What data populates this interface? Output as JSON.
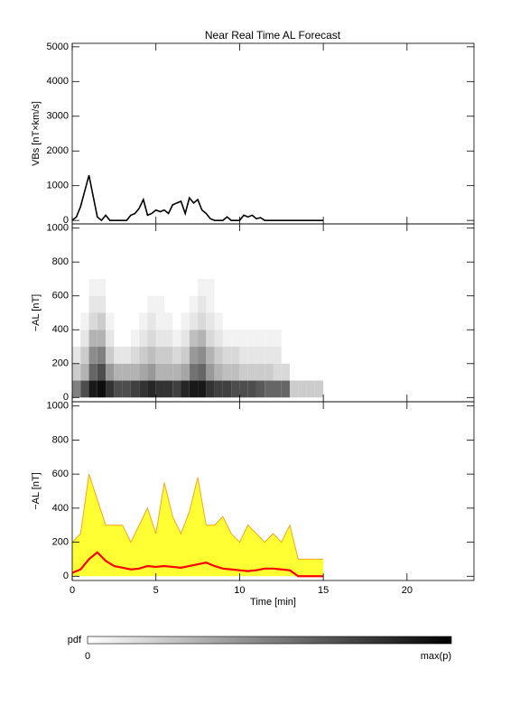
{
  "title": "Near Real Time AL Forecast",
  "chart_data": [
    {
      "type": "line",
      "ylabel": "VBs [nT×km/s]",
      "xlim": [
        0,
        24
      ],
      "ylim": [
        -100,
        5100
      ],
      "xticks": [
        0,
        5,
        10,
        15,
        20
      ],
      "yticks": [
        0,
        1000,
        2000,
        3000,
        4000,
        5000
      ],
      "color": "#000000",
      "x": [
        0,
        0.25,
        0.5,
        0.75,
        1,
        1.25,
        1.5,
        1.75,
        2,
        2.25,
        2.5,
        2.75,
        3,
        3.25,
        3.5,
        3.75,
        4,
        4.25,
        4.5,
        4.75,
        5,
        5.25,
        5.5,
        5.75,
        6,
        6.25,
        6.5,
        6.75,
        7,
        7.25,
        7.5,
        7.75,
        8,
        8.25,
        8.5,
        8.75,
        9,
        9.25,
        9.5,
        9.75,
        10,
        10.25,
        10.5,
        10.75,
        11,
        11.25,
        11.5,
        11.75,
        12,
        12.25,
        12.5,
        12.75,
        13,
        13.25,
        13.5,
        13.75,
        14,
        14.25,
        14.5,
        14.75,
        15
      ],
      "values": [
        0,
        100,
        400,
        850,
        1300,
        700,
        100,
        0,
        150,
        0,
        0,
        0,
        0,
        0,
        150,
        200,
        350,
        600,
        150,
        200,
        300,
        250,
        300,
        200,
        450,
        500,
        550,
        200,
        650,
        500,
        600,
        300,
        200,
        50,
        0,
        0,
        0,
        100,
        0,
        0,
        0,
        150,
        100,
        150,
        50,
        80,
        0,
        0,
        0,
        0,
        0,
        0,
        0,
        0,
        0,
        0,
        0,
        0,
        0,
        0,
        0
      ]
    },
    {
      "type": "heatmap",
      "ylabel": "−AL [nT]",
      "xlim": [
        0,
        24
      ],
      "ylim": [
        -25,
        1025
      ],
      "xticks": [
        0,
        5,
        10,
        15,
        20
      ],
      "yticks": [
        0,
        200,
        400,
        600,
        800,
        1000
      ],
      "x_bins": [
        0,
        0.5,
        1,
        1.5,
        2,
        2.5,
        3,
        3.5,
        4,
        4.5,
        5,
        5.5,
        6,
        6.5,
        7,
        7.5,
        8,
        8.5,
        9,
        9.5,
        10,
        10.5,
        11,
        11.5,
        12,
        12.5,
        13,
        13.5,
        14,
        14.5,
        15
      ],
      "y_bins": [
        0,
        100,
        200,
        300,
        400,
        500,
        600,
        700
      ],
      "cells": [
        [
          0.5,
          0.7,
          0.9,
          0.95,
          0.8,
          0.7,
          0.7,
          0.75,
          0.8,
          0.85,
          0.8,
          0.8,
          0.75,
          0.85,
          0.9,
          0.9,
          0.8,
          0.75,
          0.75,
          0.7,
          0.7,
          0.7,
          0.65,
          0.6,
          0.6,
          0.6,
          0.2,
          0.2,
          0.2,
          0.2
        ],
        [
          0.2,
          0.3,
          0.6,
          0.7,
          0.4,
          0.3,
          0.3,
          0.3,
          0.35,
          0.4,
          0.3,
          0.3,
          0.3,
          0.35,
          0.55,
          0.6,
          0.4,
          0.3,
          0.25,
          0.25,
          0.2,
          0.2,
          0.2,
          0.2,
          0.15,
          0.15,
          0,
          0,
          0,
          0
        ],
        [
          0.1,
          0.2,
          0.45,
          0.5,
          0.2,
          0.1,
          0.1,
          0.15,
          0.2,
          0.25,
          0.2,
          0.2,
          0.15,
          0.2,
          0.4,
          0.45,
          0.3,
          0.2,
          0.15,
          0.15,
          0.1,
          0.1,
          0.1,
          0.1,
          0.1,
          0,
          0,
          0,
          0,
          0
        ],
        [
          0,
          0.1,
          0.3,
          0.3,
          0.1,
          0,
          0,
          0.05,
          0.1,
          0.15,
          0.1,
          0.1,
          0.05,
          0.1,
          0.25,
          0.3,
          0.15,
          0.1,
          0.05,
          0.05,
          0.05,
          0.05,
          0.05,
          0.05,
          0.05,
          0,
          0,
          0,
          0,
          0
        ],
        [
          0,
          0.05,
          0.15,
          0.2,
          0.05,
          0,
          0,
          0,
          0.05,
          0.1,
          0.05,
          0.05,
          0,
          0.05,
          0.1,
          0.15,
          0.1,
          0.05,
          0,
          0,
          0,
          0,
          0,
          0,
          0,
          0,
          0,
          0,
          0,
          0
        ],
        [
          0,
          0,
          0.1,
          0.1,
          0,
          0,
          0,
          0,
          0,
          0.05,
          0.05,
          0,
          0,
          0,
          0.05,
          0.1,
          0.05,
          0,
          0,
          0,
          0,
          0,
          0,
          0,
          0,
          0,
          0,
          0,
          0,
          0
        ],
        [
          0,
          0,
          0.05,
          0.05,
          0,
          0,
          0,
          0,
          0,
          0,
          0,
          0,
          0,
          0,
          0,
          0.05,
          0.05,
          0,
          0,
          0,
          0,
          0,
          0,
          0,
          0,
          0,
          0,
          0,
          0,
          0
        ]
      ]
    },
    {
      "type": "band",
      "ylabel": "−AL [nT]",
      "xlabel": "Time [min]",
      "xlim": [
        0,
        24
      ],
      "ylim": [
        -25,
        1025
      ],
      "xticks": [
        0,
        5,
        10,
        15,
        20
      ],
      "yticks": [
        0,
        200,
        400,
        600,
        800,
        1000
      ],
      "x": [
        0,
        0.5,
        1,
        1.5,
        2,
        2.5,
        3,
        3.5,
        4,
        4.5,
        5,
        5.5,
        6,
        6.5,
        7,
        7.5,
        8,
        8.5,
        9,
        9.5,
        10,
        10.5,
        11,
        11.5,
        12,
        12.5,
        13,
        13.5,
        14,
        14.5,
        15
      ],
      "series": [
        {
          "color": "#f5a623",
          "fill": "#ffff33",
          "values": [
            200,
            250,
            600,
            450,
            300,
            300,
            300,
            200,
            300,
            400,
            250,
            550,
            350,
            250,
            380,
            580,
            300,
            300,
            350,
            250,
            200,
            300,
            250,
            200,
            250,
            200,
            300,
            100,
            100,
            100,
            100
          ]
        },
        {
          "color": "#ff0000",
          "values": [
            20,
            40,
            100,
            140,
            90,
            60,
            50,
            40,
            45,
            60,
            55,
            60,
            55,
            50,
            60,
            70,
            80,
            60,
            45,
            40,
            35,
            30,
            35,
            45,
            45,
            40,
            35,
            0,
            0,
            0,
            0
          ]
        }
      ]
    }
  ],
  "colorbar": {
    "label": "pdf",
    "labels": [
      "0",
      "max(p)"
    ]
  }
}
